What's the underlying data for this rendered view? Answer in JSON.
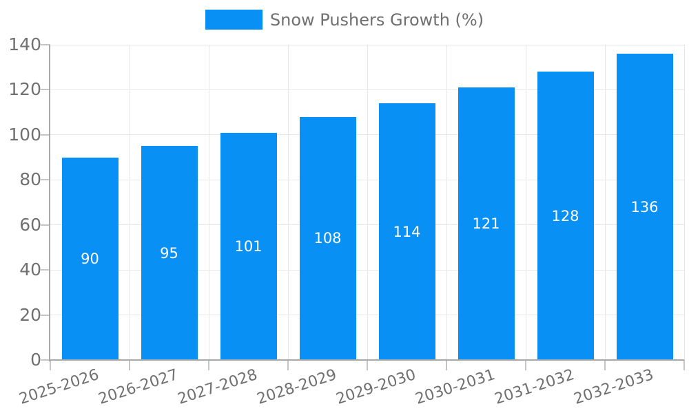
{
  "legend": {
    "label": "Snow Pushers Growth (%)"
  },
  "colors": {
    "bar": "#0890f5",
    "axis_text": "#707070",
    "grid": "#e6e6e6",
    "tick": "#c4c4c4",
    "axis_line": "#a8a8a8",
    "value_label": "#ffffff",
    "background": "#ffffff"
  },
  "chart_data": {
    "type": "bar",
    "title": "Snow Pushers Growth (%)",
    "categories": [
      "2025-2026",
      "2026-2027",
      "2027-2028",
      "2028-2029",
      "2029-2030",
      "2030-2031",
      "2031-2032",
      "2032-2033"
    ],
    "values": [
      90,
      95,
      101,
      108,
      114,
      121,
      128,
      136
    ],
    "xlabel": "",
    "ylabel": "",
    "ylim": [
      0,
      140
    ],
    "yticks": [
      0,
      20,
      40,
      60,
      80,
      100,
      120,
      140
    ],
    "grid": true,
    "legend_position": "top-center",
    "value_label_position": "inside-center",
    "value_label_color": "#ffffff"
  }
}
